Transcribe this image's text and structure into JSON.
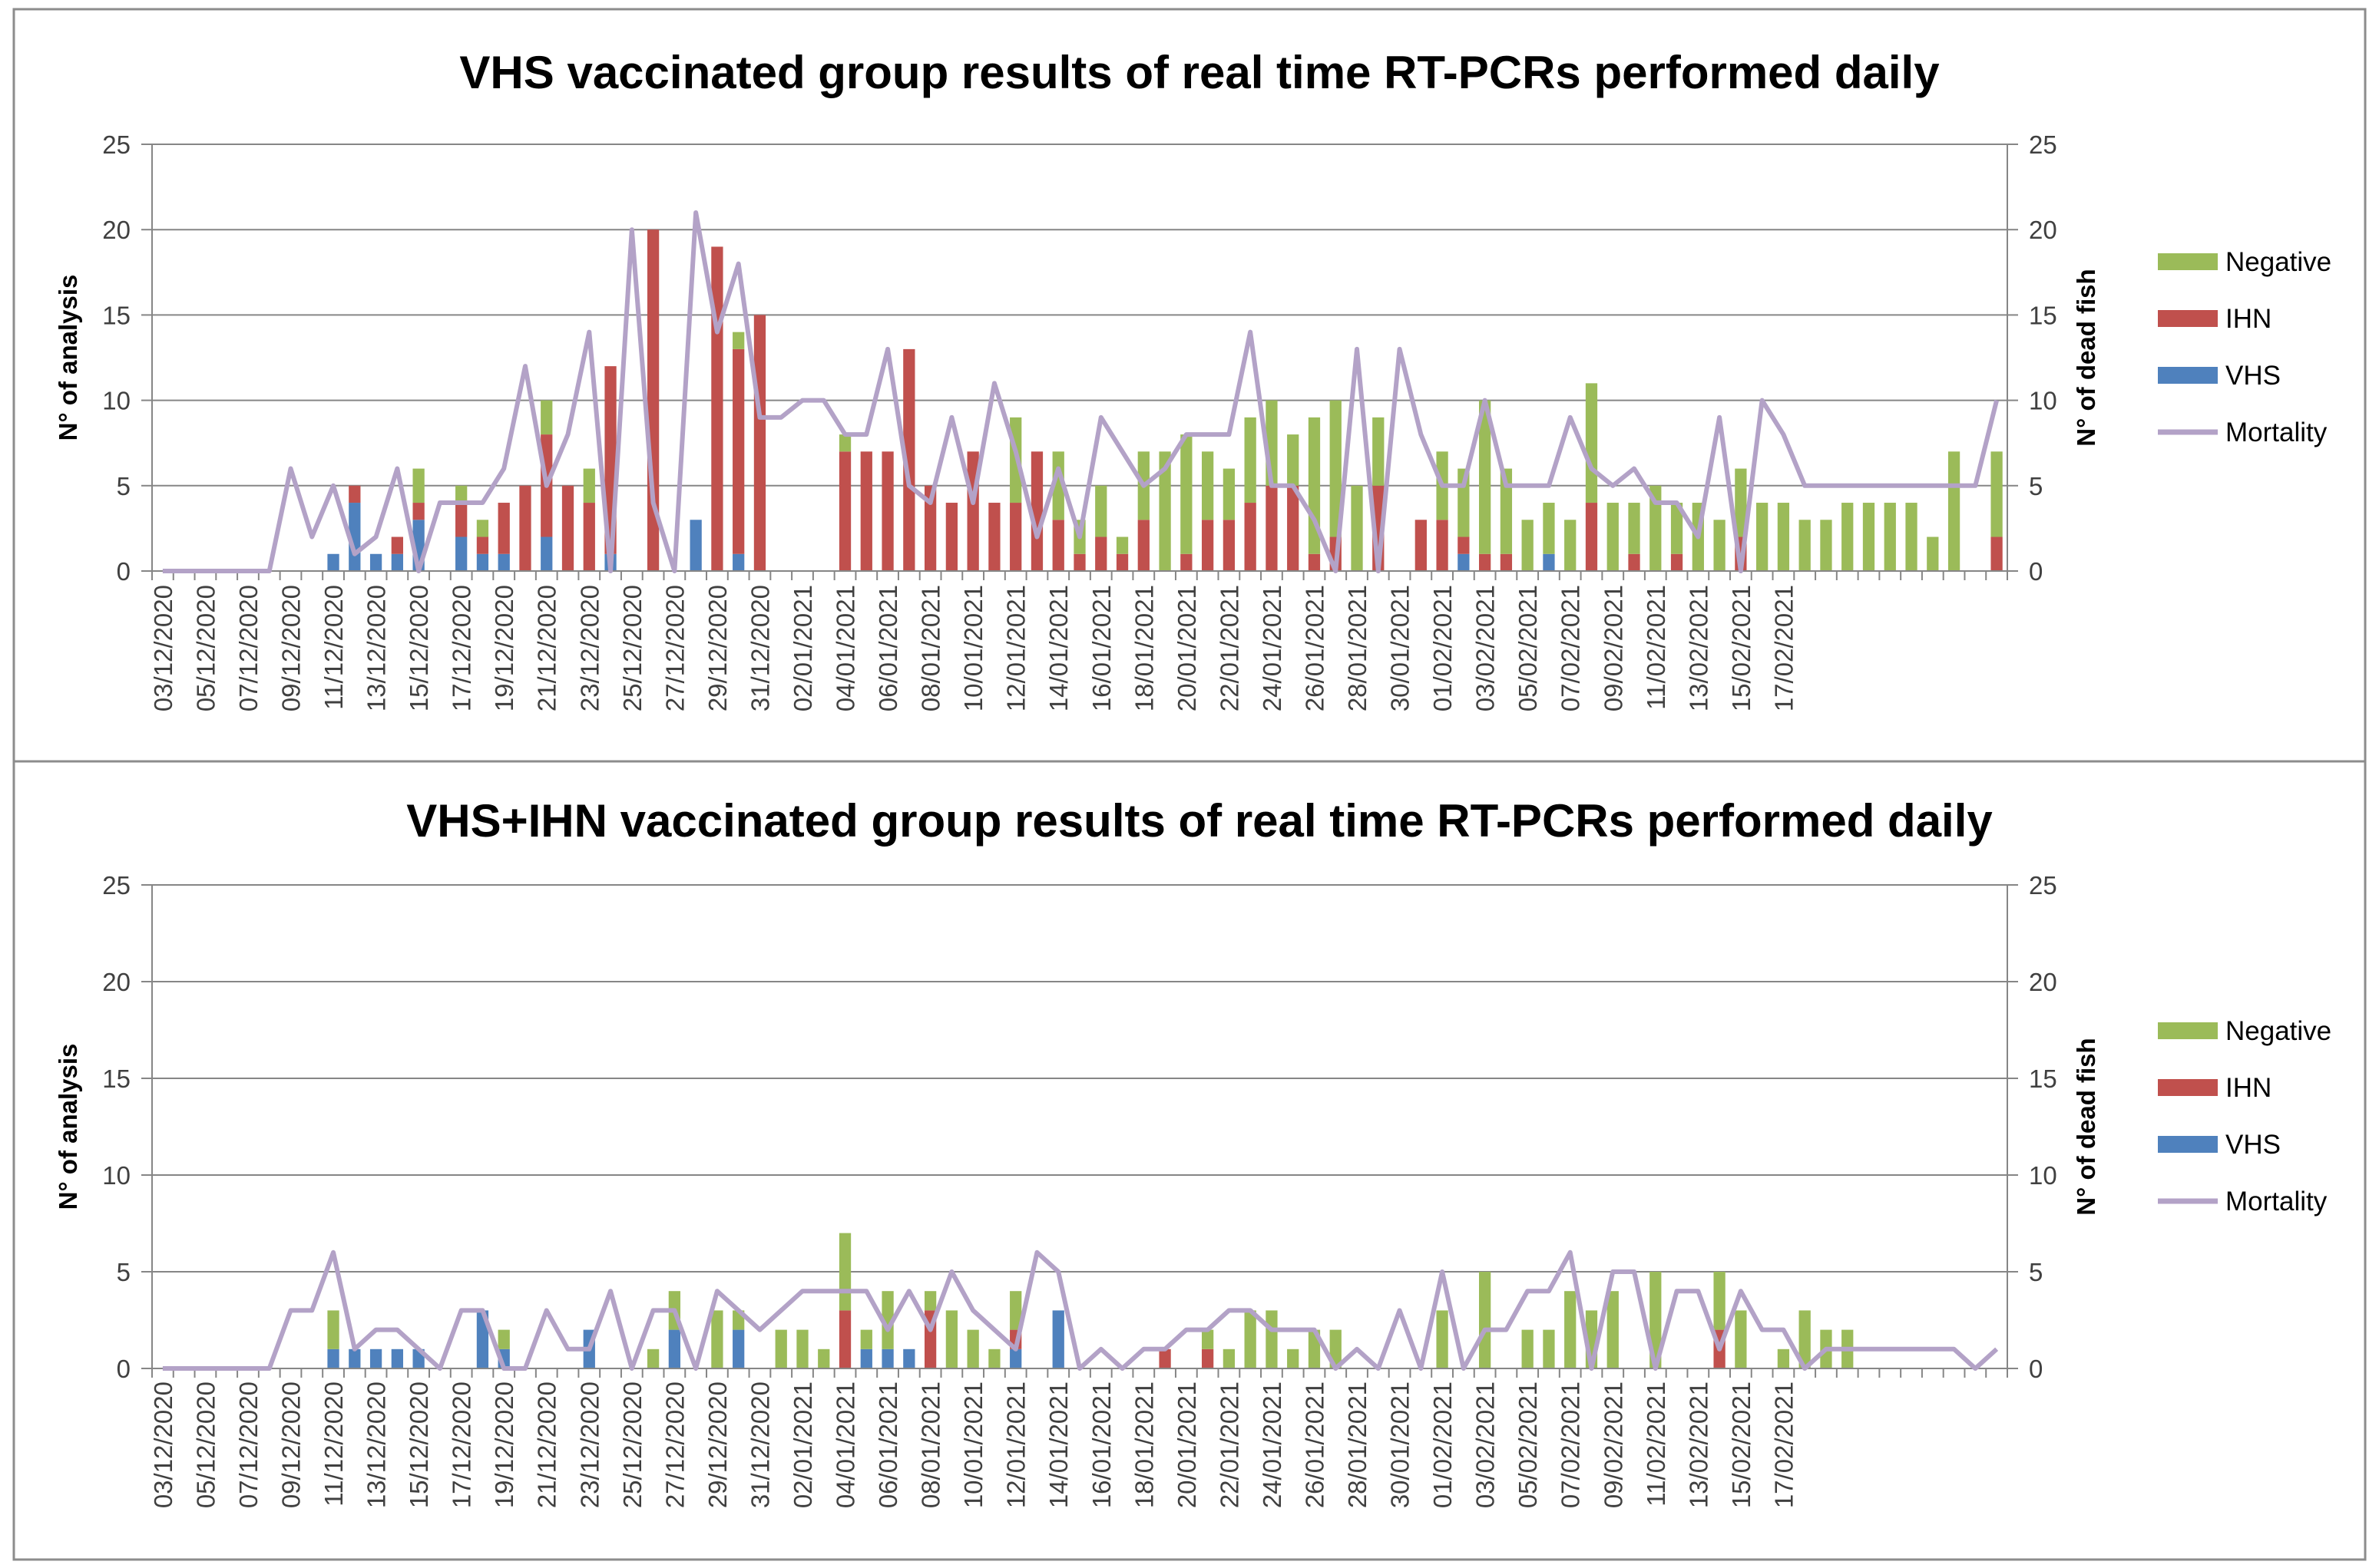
{
  "colors": {
    "negative": "#9bbb59",
    "ihn": "#c0504d",
    "vhs": "#4f81bd",
    "mortality": "#b3a2c7",
    "grid": "#868686"
  },
  "chart_data": [
    {
      "type": "bar",
      "stacked": true,
      "title": "VHS vaccinated group results of real time RT-PCRs performed daily",
      "ylabel": "N° of analysis",
      "y2label": "N° of dead fish",
      "ylim": [
        0,
        25
      ],
      "y2lim": [
        0,
        25
      ],
      "yticks": [
        "0",
        "5",
        "10",
        "15",
        "20",
        "25"
      ],
      "legend": [
        "Negative",
        "IHN",
        "VHS",
        "Mortality"
      ],
      "legend_position": "right",
      "x_tick_labels": [
        "03/12/2020",
        "05/12/2020",
        "07/12/2020",
        "09/12/2020",
        "11/12/2020",
        "13/12/2020",
        "15/12/2020",
        "17/12/2020",
        "19/12/2020",
        "21/12/2020",
        "23/12/2020",
        "25/12/2020",
        "27/12/2020",
        "29/12/2020",
        "31/12/2020",
        "02/01/2021",
        "04/01/2021",
        "06/01/2021",
        "08/01/2021",
        "10/01/2021",
        "12/01/2021",
        "14/01/2021",
        "16/01/2021",
        "18/01/2021",
        "20/01/2021",
        "22/01/2021",
        "24/01/2021",
        "26/01/2021",
        "28/01/2021",
        "30/01/2021",
        "01/02/2021",
        "03/02/2021",
        "05/02/2021",
        "07/02/2021",
        "09/02/2021",
        "11/02/2021",
        "13/02/2021",
        "15/02/2021",
        "17/02/2021"
      ],
      "series": [
        {
          "name": "VHS",
          "values": [
            0,
            0,
            0,
            0,
            0,
            0,
            0,
            0,
            1,
            4,
            1,
            1,
            3,
            0,
            2,
            1,
            1,
            0,
            2,
            0,
            0,
            1,
            0,
            0,
            0,
            3,
            0,
            1,
            0,
            0,
            0,
            0,
            0,
            0,
            0,
            0,
            0,
            0,
            0,
            0,
            0,
            0,
            0,
            0,
            0,
            0,
            0,
            0,
            0,
            0,
            0,
            0,
            0,
            0,
            0,
            0,
            0,
            0,
            0,
            0,
            0,
            1,
            0,
            0,
            0,
            1,
            0,
            0,
            0,
            0,
            0,
            0,
            0,
            0,
            0,
            0,
            0,
            0,
            0,
            0,
            0,
            0,
            0,
            0,
            0,
            0,
            0
          ]
        },
        {
          "name": "IHN",
          "values": [
            0,
            0,
            0,
            0,
            0,
            0,
            0,
            0,
            0,
            1,
            0,
            1,
            1,
            0,
            2,
            1,
            3,
            5,
            6,
            5,
            4,
            11,
            0,
            20,
            0,
            0,
            19,
            12,
            15,
            0,
            0,
            0,
            7,
            7,
            7,
            13,
            5,
            4,
            7,
            4,
            4,
            7,
            3,
            1,
            2,
            1,
            3,
            0,
            1,
            3,
            3,
            4,
            5,
            5,
            1,
            2,
            0,
            5,
            0,
            3,
            3,
            1,
            1,
            1,
            0,
            0,
            0,
            4,
            0,
            1,
            0,
            1,
            0,
            0,
            2,
            0,
            0,
            0,
            0,
            0,
            0,
            0,
            0,
            0,
            0,
            0,
            2
          ]
        },
        {
          "name": "Negative",
          "values": [
            0,
            0,
            0,
            0,
            0,
            0,
            0,
            0,
            0,
            0,
            0,
            0,
            2,
            0,
            1,
            1,
            0,
            0,
            2,
            0,
            2,
            0,
            0,
            0,
            0,
            0,
            0,
            1,
            0,
            0,
            0,
            0,
            1,
            0,
            0,
            0,
            0,
            0,
            0,
            0,
            5,
            0,
            4,
            2,
            3,
            1,
            4,
            7,
            7,
            4,
            3,
            5,
            5,
            3,
            8,
            8,
            5,
            4,
            0,
            0,
            4,
            4,
            9,
            5,
            3,
            3,
            3,
            7,
            4,
            3,
            5,
            3,
            4,
            3,
            4,
            4,
            4,
            3,
            3,
            4,
            4,
            4,
            4,
            2,
            7,
            0,
            5
          ]
        },
        {
          "name": "Mortality",
          "type": "line",
          "values": [
            0,
            0,
            0,
            0,
            0,
            0,
            6,
            2,
            5,
            1,
            2,
            6,
            0,
            4,
            4,
            4,
            6,
            12,
            5,
            8,
            14,
            0,
            20,
            4,
            0,
            21,
            14,
            18,
            9,
            9,
            10,
            10,
            8,
            8,
            13,
            5,
            4,
            9,
            4,
            11,
            7,
            2,
            6,
            2,
            9,
            7,
            5,
            6,
            8,
            8,
            8,
            14,
            5,
            5,
            3,
            0,
            13,
            0,
            13,
            8,
            5,
            5,
            10,
            5,
            5,
            5,
            9,
            6,
            5,
            6,
            4,
            4,
            2,
            9,
            0,
            10,
            8,
            5,
            5,
            5,
            5,
            5,
            5,
            5,
            5,
            5,
            10
          ]
        }
      ]
    },
    {
      "type": "bar",
      "stacked": true,
      "title": "VHS+IHN vaccinated group results of real time RT-PCRs performed daily",
      "ylabel": "N° of analysis",
      "y2label": "N° of dead fish",
      "ylim": [
        0,
        25
      ],
      "y2lim": [
        0,
        25
      ],
      "yticks": [
        "0",
        "5",
        "10",
        "15",
        "20",
        "25"
      ],
      "legend": [
        "Negative",
        "IHN",
        "VHS",
        "Mortality"
      ],
      "legend_position": "right",
      "x_tick_labels": [
        "03/12/2020",
        "05/12/2020",
        "07/12/2020",
        "09/12/2020",
        "11/12/2020",
        "13/12/2020",
        "15/12/2020",
        "17/12/2020",
        "19/12/2020",
        "21/12/2020",
        "23/12/2020",
        "25/12/2020",
        "27/12/2020",
        "29/12/2020",
        "31/12/2020",
        "02/01/2021",
        "04/01/2021",
        "06/01/2021",
        "08/01/2021",
        "10/01/2021",
        "12/01/2021",
        "14/01/2021",
        "16/01/2021",
        "18/01/2021",
        "20/01/2021",
        "22/01/2021",
        "24/01/2021",
        "26/01/2021",
        "28/01/2021",
        "30/01/2021",
        "01/02/2021",
        "03/02/2021",
        "05/02/2021",
        "07/02/2021",
        "09/02/2021",
        "11/02/2021",
        "13/02/2021",
        "15/02/2021",
        "17/02/2021"
      ],
      "series": [
        {
          "name": "VHS",
          "values": [
            0,
            0,
            0,
            0,
            0,
            0,
            0,
            0,
            1,
            1,
            1,
            1,
            1,
            0,
            0,
            3,
            1,
            0,
            0,
            0,
            2,
            0,
            0,
            0,
            2,
            0,
            0,
            2,
            0,
            0,
            0,
            0,
            0,
            1,
            1,
            1,
            0,
            0,
            0,
            0,
            1,
            0,
            3,
            0,
            0,
            0,
            0,
            0,
            0,
            0,
            0,
            0,
            0,
            0,
            0,
            0,
            0,
            0,
            0,
            0,
            0,
            0,
            0,
            0,
            0,
            0,
            0,
            0,
            0,
            0,
            0,
            0,
            0,
            0,
            0,
            0,
            0,
            0,
            0,
            0,
            0,
            0,
            0,
            0,
            0,
            0,
            0,
            0
          ]
        },
        {
          "name": "IHN",
          "values": [
            0,
            0,
            0,
            0,
            0,
            0,
            0,
            0,
            0,
            0,
            0,
            0,
            0,
            0,
            0,
            0,
            0,
            0,
            0,
            0,
            0,
            0,
            0,
            0,
            0,
            0,
            0,
            0,
            0,
            0,
            0,
            0,
            3,
            0,
            0,
            0,
            3,
            0,
            0,
            0,
            1,
            0,
            0,
            0,
            0,
            0,
            0,
            1,
            0,
            1,
            0,
            0,
            0,
            0,
            0,
            0,
            0,
            0,
            0,
            0,
            0,
            0,
            0,
            0,
            0,
            0,
            0,
            0,
            0,
            0,
            0,
            0,
            0,
            2,
            0,
            0,
            0,
            0,
            0,
            0,
            0,
            0,
            0,
            0,
            0,
            0,
            0
          ]
        },
        {
          "name": "Negative",
          "values": [
            0,
            0,
            0,
            0,
            0,
            0,
            0,
            0,
            2,
            0,
            0,
            0,
            0,
            0,
            0,
            0,
            1,
            0,
            0,
            0,
            0,
            0,
            0,
            1,
            2,
            0,
            3,
            1,
            0,
            2,
            2,
            1,
            4,
            1,
            3,
            0,
            1,
            3,
            2,
            1,
            2,
            0,
            0,
            0,
            0,
            0,
            0,
            0,
            0,
            1,
            1,
            3,
            3,
            1,
            2,
            2,
            0,
            0,
            0,
            0,
            3,
            0,
            5,
            0,
            2,
            2,
            4,
            3,
            4,
            0,
            5,
            0,
            0,
            3,
            3,
            0,
            1,
            3,
            2,
            2,
            0,
            0,
            0,
            0,
            0,
            0,
            0
          ]
        },
        {
          "name": "Mortality",
          "type": "line",
          "values": [
            0,
            0,
            0,
            0,
            0,
            0,
            3,
            3,
            6,
            1,
            2,
            2,
            1,
            0,
            3,
            3,
            0,
            0,
            3,
            1,
            1,
            4,
            0,
            3,
            3,
            0,
            4,
            3,
            2,
            3,
            4,
            4,
            4,
            4,
            2,
            4,
            2,
            5,
            3,
            2,
            1,
            6,
            5,
            0,
            1,
            0,
            1,
            1,
            2,
            2,
            3,
            3,
            2,
            2,
            2,
            0,
            1,
            0,
            3,
            0,
            5,
            0,
            2,
            2,
            4,
            4,
            6,
            0,
            5,
            5,
            0,
            4,
            4,
            1,
            4,
            2,
            2,
            0,
            1,
            1,
            1,
            1,
            1,
            1,
            1,
            0,
            1
          ]
        }
      ]
    }
  ]
}
